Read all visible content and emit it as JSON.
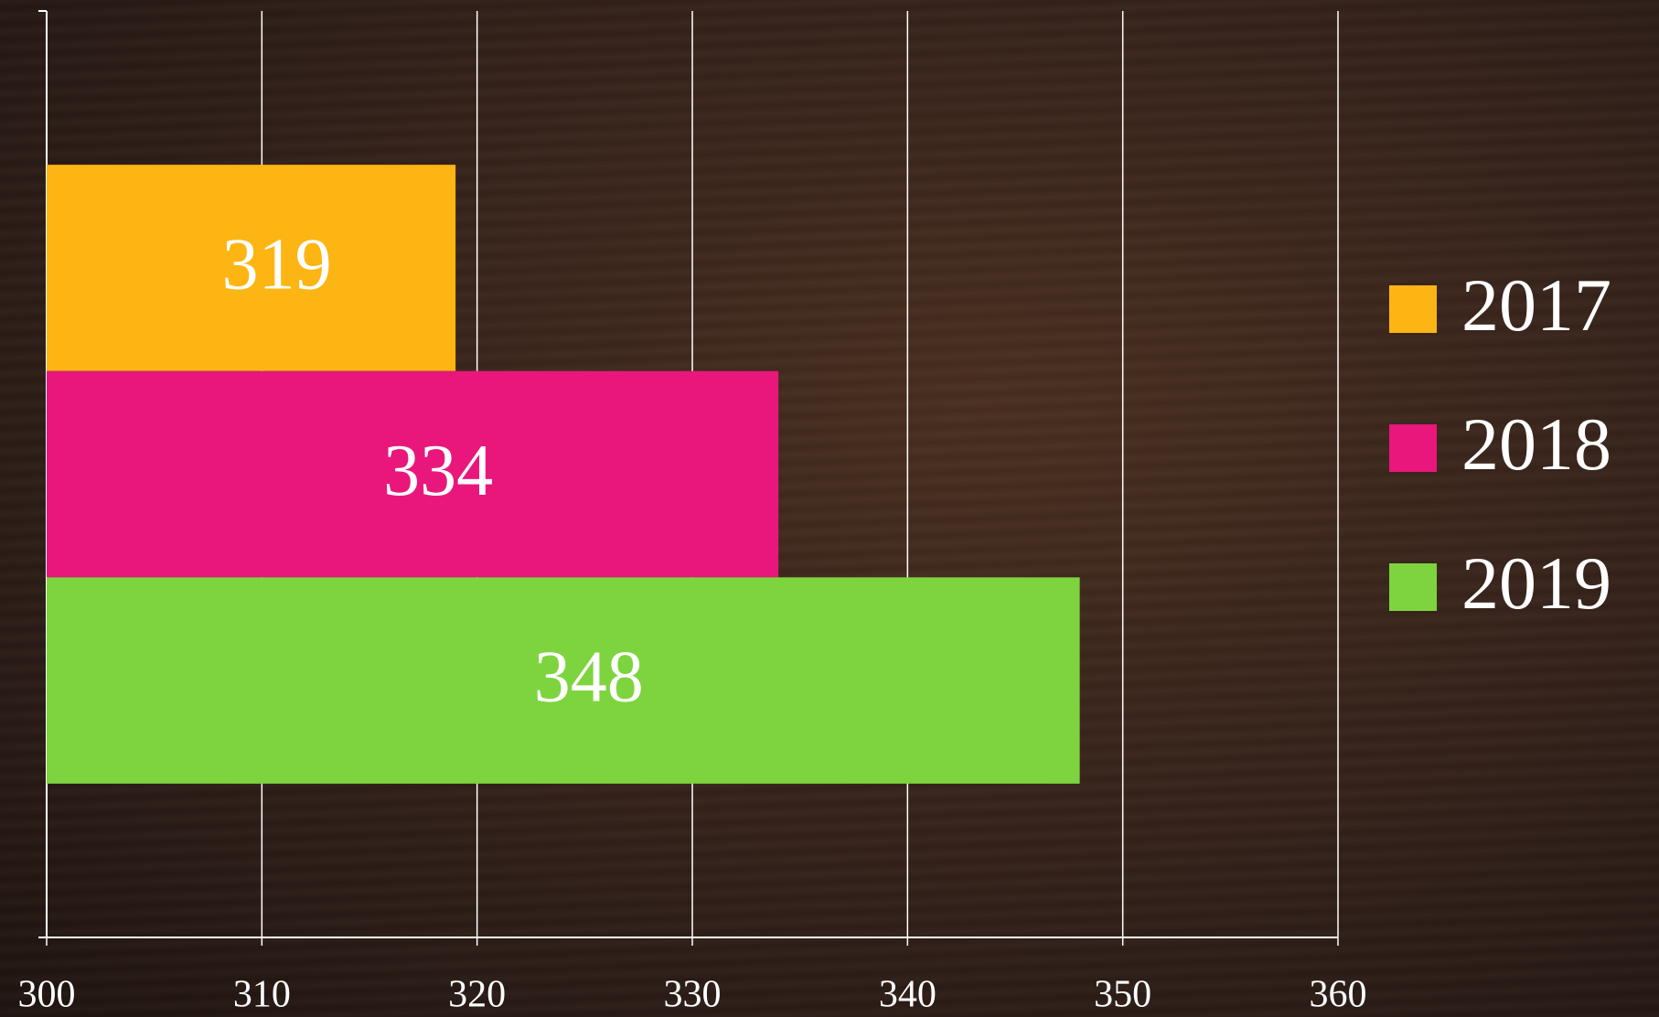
{
  "chart_data": {
    "type": "bar",
    "orientation": "horizontal",
    "categories": [
      null
    ],
    "series": [
      {
        "name": "2017",
        "color": "#fdb514",
        "values": [
          319
        ]
      },
      {
        "name": "2018",
        "color": "#e9177b",
        "values": [
          334
        ]
      },
      {
        "name": "2019",
        "color": "#7ed43e",
        "values": [
          348
        ]
      }
    ],
    "xlim": [
      300,
      360
    ],
    "xticks": [
      300,
      310,
      320,
      330,
      340,
      350,
      360
    ],
    "grid": true,
    "data_labels": true,
    "legend": "right"
  }
}
